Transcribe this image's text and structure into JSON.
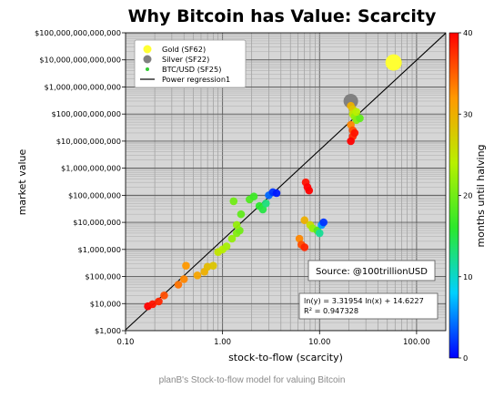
{
  "caption": "planB's Stock-to-flow model for valuing Bitcoin",
  "chart_data": {
    "type": "scatter",
    "title": "Why Bitcoin has Value: Scarcity",
    "xlabel": "stock-to-flow (scarcity)",
    "ylabel": "market value",
    "xscale": "log",
    "yscale": "log",
    "xlim": [
      0.1,
      200
    ],
    "ylim": [
      1000,
      100000000000000
    ],
    "x_ticks": [
      0.1,
      1,
      10,
      100
    ],
    "x_tick_labels": [
      "0.10",
      "1.00",
      "10.00",
      "100.00"
    ],
    "y_ticks": [
      1000,
      10000,
      100000,
      1000000,
      10000000,
      100000000,
      1000000000,
      10000000000,
      100000000000,
      1000000000000,
      10000000000000,
      100000000000000
    ],
    "y_tick_labels": [
      "$1,000",
      "$10,000",
      "$100,000",
      "$1,000,000",
      "$10,000,000",
      "$100,000,000",
      "$1,000,000,000",
      "$10,000,000,000",
      "$100,000,000,000",
      "$1,000,000,000,000",
      "$10,000,000,000,000",
      "$100,000,000,000,000"
    ],
    "grid": true,
    "legend_position": "top-left",
    "legend": [
      {
        "label": "Gold (SF62)",
        "marker": "circle",
        "color": "#ffff33"
      },
      {
        "label": "Silver (SF22)",
        "marker": "circle",
        "color": "#808080"
      },
      {
        "label": "BTC/USD (SF25)",
        "marker": "dot",
        "color": "#33cc33"
      },
      {
        "label": "Power regression1",
        "marker": "line",
        "color": "#000000"
      }
    ],
    "colorbar": {
      "label": "months until halving",
      "min": 0,
      "max": 40,
      "ticks": [
        0,
        10,
        20,
        30,
        40
      ],
      "colors": [
        "#0000ff",
        "#00d0ff",
        "#2ce82c",
        "#b8f000",
        "#ff9900",
        "#ff0000"
      ]
    },
    "annotations": {
      "source": "Source: @100trillionUSD",
      "formula_line1": "ln(y) = 3.31954 ln(x) + 14.6227",
      "formula_line2": "R² = 0.947328"
    },
    "regression": {
      "a": 3.31954,
      "b": 14.6227
    },
    "series": [
      {
        "name": "Gold (SF62)",
        "color": "#ffff33",
        "points": [
          {
            "x": 58,
            "y": 8000000000000
          }
        ]
      },
      {
        "name": "Silver (SF22)",
        "color": "#808080",
        "points": [
          {
            "x": 21,
            "y": 300000000000
          }
        ]
      },
      {
        "name": "BTC/USD (SF25)",
        "points": [
          {
            "x": 0.17,
            "y": 8000,
            "m": 40
          },
          {
            "x": 0.19,
            "y": 9500,
            "m": 39
          },
          {
            "x": 0.22,
            "y": 12000,
            "m": 38
          },
          {
            "x": 0.25,
            "y": 20000,
            "m": 36
          },
          {
            "x": 0.35,
            "y": 50000,
            "m": 34
          },
          {
            "x": 0.4,
            "y": 80000,
            "m": 33
          },
          {
            "x": 0.42,
            "y": 250000,
            "m": 32
          },
          {
            "x": 0.55,
            "y": 110000,
            "m": 31
          },
          {
            "x": 0.65,
            "y": 150000,
            "m": 30
          },
          {
            "x": 0.7,
            "y": 230000,
            "m": 29
          },
          {
            "x": 0.8,
            "y": 250000,
            "m": 28
          },
          {
            "x": 0.9,
            "y": 800000,
            "m": 25
          },
          {
            "x": 1.0,
            "y": 1000000,
            "m": 24
          },
          {
            "x": 1.1,
            "y": 1300000,
            "m": 23
          },
          {
            "x": 1.25,
            "y": 2500000,
            "m": 22
          },
          {
            "x": 1.4,
            "y": 4000000,
            "m": 21
          },
          {
            "x": 1.5,
            "y": 5000000,
            "m": 20
          },
          {
            "x": 1.4,
            "y": 8000000,
            "m": 22
          },
          {
            "x": 1.3,
            "y": 60000000,
            "m": 20
          },
          {
            "x": 1.55,
            "y": 20000000,
            "m": 19
          },
          {
            "x": 1.9,
            "y": 70000000,
            "m": 18
          },
          {
            "x": 2.1,
            "y": 90000000,
            "m": 17
          },
          {
            "x": 2.4,
            "y": 40000000,
            "m": 16
          },
          {
            "x": 2.6,
            "y": 30000000,
            "m": 15
          },
          {
            "x": 2.8,
            "y": 50000000,
            "m": 13
          },
          {
            "x": 3.0,
            "y": 100000000,
            "m": 4
          },
          {
            "x": 3.3,
            "y": 130000000,
            "m": 2
          },
          {
            "x": 3.6,
            "y": 120000000,
            "m": 1
          },
          {
            "x": 6.2,
            "y": 2500000,
            "m": 33
          },
          {
            "x": 6.5,
            "y": 1500000,
            "m": 36
          },
          {
            "x": 7.0,
            "y": 1200000,
            "m": 38
          },
          {
            "x": 7.2,
            "y": 300000000,
            "m": 39
          },
          {
            "x": 7.5,
            "y": 200000000,
            "m": 40
          },
          {
            "x": 7.8,
            "y": 150000000,
            "m": 40
          },
          {
            "x": 7.0,
            "y": 12000000,
            "m": 30
          },
          {
            "x": 8.0,
            "y": 8000000,
            "m": 26
          },
          {
            "x": 8.5,
            "y": 6000000,
            "m": 22
          },
          {
            "x": 9.5,
            "y": 5000000,
            "m": 18
          },
          {
            "x": 10.0,
            "y": 4000000,
            "m": 12
          },
          {
            "x": 10.5,
            "y": 8000000,
            "m": 6
          },
          {
            "x": 11.0,
            "y": 10000000,
            "m": 2
          },
          {
            "x": 21,
            "y": 200000000000,
            "m": 30
          },
          {
            "x": 22,
            "y": 150000000000,
            "m": 28
          },
          {
            "x": 22,
            "y": 100000000000,
            "m": 25
          },
          {
            "x": 23,
            "y": 80000000000,
            "m": 22
          },
          {
            "x": 24,
            "y": 60000000000,
            "m": 21
          },
          {
            "x": 26,
            "y": 70000000000,
            "m": 19
          },
          {
            "x": 21,
            "y": 40000000000,
            "m": 33
          },
          {
            "x": 22,
            "y": 25000000000,
            "m": 36
          },
          {
            "x": 22,
            "y": 15000000000,
            "m": 38
          },
          {
            "x": 21,
            "y": 10000000000,
            "m": 40
          },
          {
            "x": 23,
            "y": 20000000000,
            "m": 39
          },
          {
            "x": 24,
            "y": 120000000000,
            "m": 24
          }
        ]
      }
    ]
  }
}
